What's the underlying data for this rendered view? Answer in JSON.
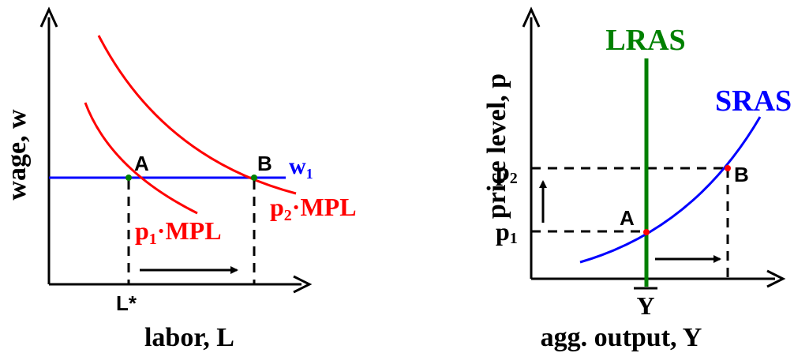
{
  "colors": {
    "axis": "#000000",
    "wage_line": "#0000ff",
    "mpl_curve": "#ff0000",
    "lras": "#008000",
    "sras": "#0000ff",
    "point": "#ff0000",
    "point_left": "#008000"
  },
  "left_panel": {
    "y_axis_label": "wage, w",
    "x_axis_label": "labor, L",
    "wage_line_label": "w",
    "wage_line_subscript": "1",
    "curve_low_label": "p",
    "curve_low_subscript": "1",
    "curve_low_suffix": "·MPL",
    "curve_high_label": "p",
    "curve_high_subscript": "2",
    "curve_high_suffix": "·MPL",
    "point_a": "A",
    "point_b": "B",
    "tick_label": "L*"
  },
  "right_panel": {
    "y_axis_label": "price level, p",
    "x_axis_label": "agg. output, Y",
    "lras_label": "LRAS",
    "sras_label": "SRAS",
    "point_a": "A",
    "point_b": "B",
    "p1_label": "p",
    "p1_subscript": "1",
    "p2_label": "p",
    "p2_subscript": "2",
    "ybar_label": "Y"
  }
}
